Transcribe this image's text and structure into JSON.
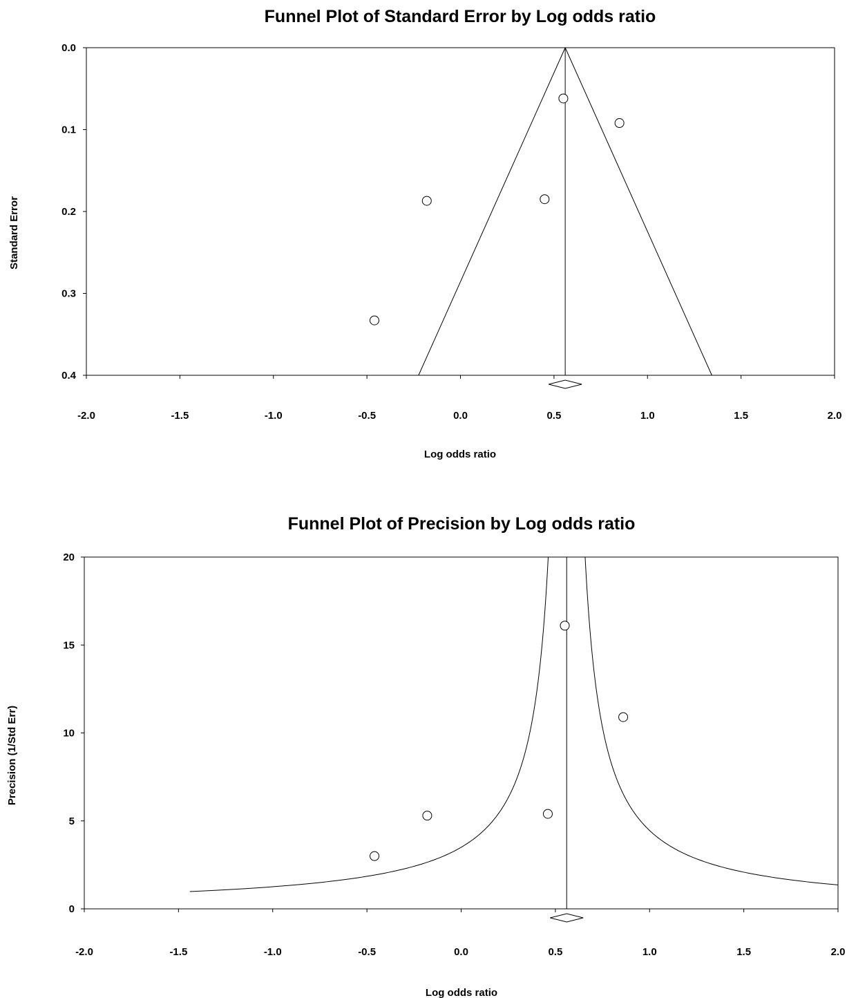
{
  "chart_data": [
    {
      "type": "scatter",
      "title": "Funnel Plot of Standard Error by Log odds ratio",
      "xlabel": "Log odds ratio",
      "ylabel": "Standard Error",
      "xlim": [
        -2.0,
        2.0
      ],
      "ylim": [
        0.0,
        0.4
      ],
      "y_inverted": true,
      "xticks": [
        "-2.0",
        "-1.5",
        "-1.0",
        "-0.5",
        "0.0",
        "0.5",
        "1.0",
        "1.5",
        "2.0"
      ],
      "yticks": [
        "0.0",
        "0.1",
        "0.2",
        "0.3",
        "0.4"
      ],
      "points": [
        {
          "x": 0.55,
          "y": 0.062
        },
        {
          "x": 0.85,
          "y": 0.092
        },
        {
          "x": -0.18,
          "y": 0.187
        },
        {
          "x": 0.45,
          "y": 0.185
        },
        {
          "x": -0.46,
          "y": 0.333
        }
      ],
      "pooled_estimate": 0.56,
      "funnel": "95% limits (straight lines)",
      "grid": false
    },
    {
      "type": "scatter",
      "title": "Funnel Plot of Precision by Log odds ratio",
      "xlabel": "Log odds ratio",
      "ylabel": "Precision (1/Std Err)",
      "xlim": [
        -2.0,
        2.0
      ],
      "ylim": [
        0,
        20
      ],
      "xticks": [
        "-2.0",
        "-1.5",
        "-1.0",
        "-0.5",
        "0.0",
        "0.5",
        "1.0",
        "1.5",
        "2.0"
      ],
      "yticks": [
        "0",
        "5",
        "10",
        "15",
        "20"
      ],
      "points": [
        {
          "x": 0.55,
          "y": 16.1
        },
        {
          "x": 0.86,
          "y": 10.9
        },
        {
          "x": -0.18,
          "y": 5.3
        },
        {
          "x": 0.46,
          "y": 5.4
        },
        {
          "x": -0.46,
          "y": 3.0
        }
      ],
      "pooled_estimate": 0.56,
      "funnel": "95% limits (hyperbolic curves)",
      "grid": false
    }
  ]
}
